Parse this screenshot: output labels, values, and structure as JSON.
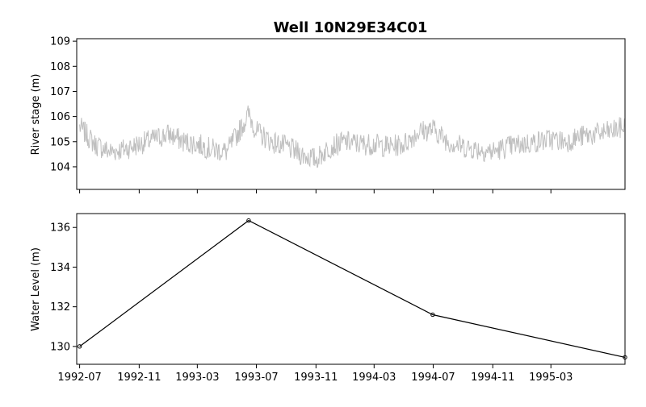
{
  "chart_data": [
    {
      "type": "line",
      "title": "Well 10N29E34C01",
      "ylabel": "River stage (m)",
      "ylim": [
        103.1,
        109.1
      ],
      "yticks": [
        104,
        105,
        106,
        107,
        108,
        109
      ],
      "series": [
        {
          "color": "#bfbfbf",
          "x": [
            "1992-07-01",
            "1992-08-01",
            "1992-09-01",
            "1992-10-01",
            "1992-11-01",
            "1992-12-01",
            "1993-01-01",
            "1993-02-01",
            "1993-03-01",
            "1993-04-01",
            "1993-05-01",
            "1993-06-01",
            "1993-06-15",
            "1993-07-01",
            "1993-08-01",
            "1993-09-01",
            "1993-10-01",
            "1993-11-01",
            "1993-12-01",
            "1994-01-01",
            "1994-02-01",
            "1994-03-01",
            "1994-04-01",
            "1994-05-01",
            "1994-06-01",
            "1994-07-01",
            "1994-08-01",
            "1994-09-01",
            "1994-10-01",
            "1994-11-01",
            "1994-12-01",
            "1995-01-01",
            "1995-02-01",
            "1995-03-01",
            "1995-04-01",
            "1995-05-01",
            "1995-06-01",
            "1995-07-01",
            "1995-08-01"
          ],
          "y": [
            105.6,
            104.9,
            104.6,
            104.7,
            104.9,
            105.1,
            105.3,
            105.0,
            104.9,
            104.7,
            104.6,
            105.6,
            106.1,
            105.4,
            105.0,
            104.8,
            104.5,
            104.3,
            104.8,
            105.0,
            104.9,
            104.9,
            104.8,
            104.9,
            105.4,
            105.5,
            105.0,
            104.8,
            104.7,
            104.6,
            104.8,
            104.9,
            105.0,
            105.1,
            105.0,
            105.2,
            105.3,
            105.4,
            105.6
          ]
        }
      ]
    },
    {
      "type": "line",
      "ylabel": "Water Level (m)",
      "ylim": [
        129.1,
        136.7
      ],
      "yticks": [
        130,
        132,
        134,
        136
      ],
      "xticks": [
        "1992-07",
        "1992-11",
        "1993-03",
        "1993-07",
        "1993-11",
        "1994-03",
        "1994-07",
        "1994-11",
        "1995-03"
      ],
      "series": [
        {
          "color": "#000000",
          "x": [
            "1992-07-01",
            "1993-06-15",
            "1994-06-30",
            "1995-08-01"
          ],
          "y": [
            130.0,
            136.35,
            131.6,
            129.45
          ]
        }
      ]
    }
  ]
}
